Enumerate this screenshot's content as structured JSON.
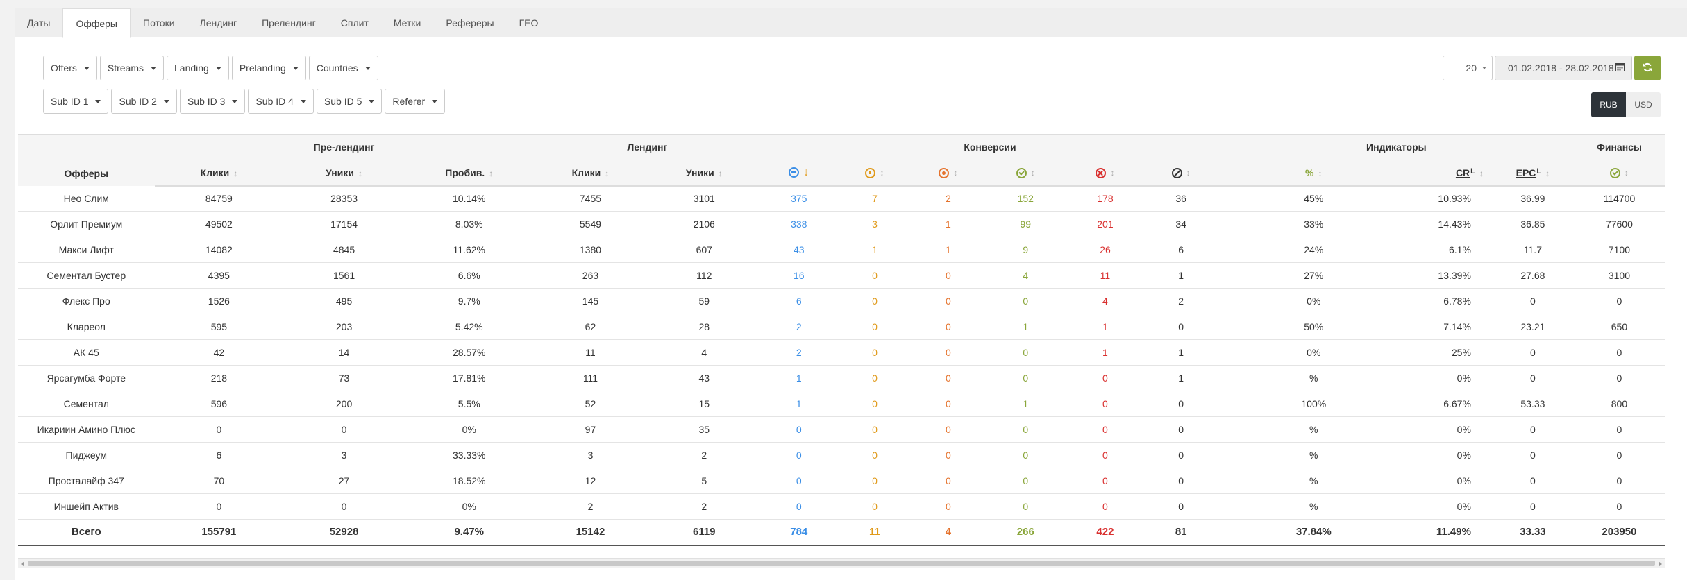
{
  "tabs": [
    "Даты",
    "Офферы",
    "Потоки",
    "Лендинг",
    "Пре­лендинг",
    "Сплит",
    "Метки",
    "Рефереры",
    "ГЕО"
  ],
  "active_tab": 1,
  "filters": {
    "row1": [
      "Offers",
      "Streams",
      "Landing",
      "Prelanding",
      "Countries"
    ],
    "row2": [
      "Sub ID 1",
      "Sub ID 2",
      "Sub ID 3",
      "Sub ID 4",
      "Sub ID 5",
      "Referer"
    ]
  },
  "per_page": "20",
  "date_range": "01.02.2018 - 28.02.2018",
  "currency": {
    "rub": "RUB",
    "usd": "USD",
    "selected": "RUB"
  },
  "table": {
    "groups": {
      "prelanding": "Пре-лендинг",
      "landing": "Лендинг",
      "conversions": "Конверсии",
      "indicators": "Индикаторы",
      "finance": "Финансы"
    },
    "columns": {
      "offers": "Офферы",
      "clicks": "Клики",
      "uniques": "Уники",
      "probiv": "Пробив.",
      "pct": "%",
      "cr": "CR",
      "epc": "EPC",
      "sup": "L"
    },
    "rows": [
      {
        "name": "Нео Слим",
        "v": [
          "84759",
          "28353",
          "10.14%",
          "7455",
          "3101",
          "375",
          "7",
          "2",
          "152",
          "178",
          "36",
          "45%",
          "10.93%",
          "36.99",
          "114700"
        ]
      },
      {
        "name": "Орлит Премиум",
        "v": [
          "49502",
          "17154",
          "8.03%",
          "5549",
          "2106",
          "338",
          "3",
          "1",
          "99",
          "201",
          "34",
          "33%",
          "14.43%",
          "36.85",
          "77600"
        ]
      },
      {
        "name": "Макси Лифт",
        "v": [
          "14082",
          "4845",
          "11.62%",
          "1380",
          "607",
          "43",
          "1",
          "1",
          "9",
          "26",
          "6",
          "24%",
          "6.1%",
          "11.7",
          "7100"
        ]
      },
      {
        "name": "Сементал Бустер",
        "v": [
          "4395",
          "1561",
          "6.6%",
          "263",
          "112",
          "16",
          "0",
          "0",
          "4",
          "11",
          "1",
          "27%",
          "13.39%",
          "27.68",
          "3100"
        ]
      },
      {
        "name": "Флекс Про",
        "v": [
          "1526",
          "495",
          "9.7%",
          "145",
          "59",
          "6",
          "0",
          "0",
          "0",
          "4",
          "2",
          "0%",
          "6.78%",
          "0",
          "0"
        ]
      },
      {
        "name": "Клареол",
        "v": [
          "595",
          "203",
          "5.42%",
          "62",
          "28",
          "2",
          "0",
          "0",
          "1",
          "1",
          "0",
          "50%",
          "7.14%",
          "23.21",
          "650"
        ]
      },
      {
        "name": "АК 45",
        "v": [
          "42",
          "14",
          "28.57%",
          "11",
          "4",
          "2",
          "0",
          "0",
          "0",
          "1",
          "1",
          "0%",
          "25%",
          "0",
          "0"
        ]
      },
      {
        "name": "Ярсагумба Форте",
        "v": [
          "218",
          "73",
          "17.81%",
          "111",
          "43",
          "1",
          "0",
          "0",
          "0",
          "0",
          "1",
          "%",
          "0%",
          "0",
          "0"
        ]
      },
      {
        "name": "Сементал",
        "v": [
          "596",
          "200",
          "5.5%",
          "52",
          "15",
          "1",
          "0",
          "0",
          "1",
          "0",
          "0",
          "100%",
          "6.67%",
          "53.33",
          "800"
        ]
      },
      {
        "name": "Икариин Амино Плюс",
        "v": [
          "0",
          "0",
          "0%",
          "97",
          "35",
          "0",
          "0",
          "0",
          "0",
          "0",
          "0",
          "%",
          "0%",
          "0",
          "0"
        ]
      },
      {
        "name": "Пиджеум",
        "v": [
          "6",
          "3",
          "33.33%",
          "3",
          "2",
          "0",
          "0",
          "0",
          "0",
          "0",
          "0",
          "%",
          "0%",
          "0",
          "0"
        ]
      },
      {
        "name": "Просталайф 347",
        "v": [
          "70",
          "27",
          "18.52%",
          "12",
          "5",
          "0",
          "0",
          "0",
          "0",
          "0",
          "0",
          "%",
          "0%",
          "0",
          "0"
        ]
      },
      {
        "name": "Иншейп Актив",
        "v": [
          "0",
          "0",
          "0%",
          "2",
          "2",
          "0",
          "0",
          "0",
          "0",
          "0",
          "0",
          "%",
          "0%",
          "0",
          "0"
        ]
      }
    ],
    "total": {
      "name": "Всего",
      "v": [
        "155791",
        "52928",
        "9.47%",
        "15142",
        "6119",
        "784",
        "11",
        "4",
        "266",
        "422",
        "81",
        "37.84%",
        "11.49%",
        "33.33",
        "203950"
      ]
    }
  }
}
